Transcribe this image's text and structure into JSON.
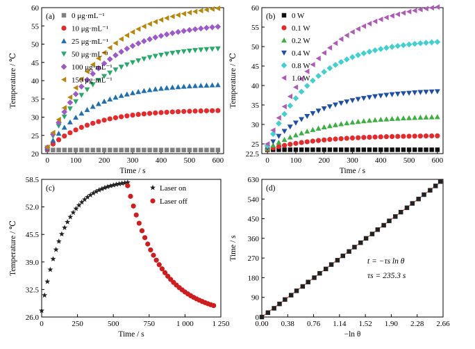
{
  "chart_data": [
    {
      "id": "a",
      "type": "scatter",
      "panel_label": "(a)",
      "xlabel": "Time / s",
      "ylabel": "Temperature / ℃",
      "xlim": [
        -20,
        620
      ],
      "ylim": [
        20,
        60
      ],
      "xticks": [
        "0",
        "100",
        "200",
        "300",
        "400",
        "500",
        "600"
      ],
      "yticks": [
        "20",
        "25",
        "30",
        "35",
        "40",
        "45",
        "50",
        "55",
        "60"
      ],
      "legend_position": "top-left",
      "series": [
        {
          "name": "0 μg·mL⁻¹",
          "marker": "square",
          "color": "#808080",
          "T0": 21.0,
          "Tmax": 21.0,
          "tau": 150
        },
        {
          "name": "10 μg·mL⁻¹",
          "marker": "circle",
          "color": "#e8292b",
          "T0": 21.3,
          "Tmax": 32.0,
          "tau": 150
        },
        {
          "name": "25 μg·mL⁻¹",
          "marker": "triangle-up",
          "color": "#1f6fb5",
          "T0": 21.5,
          "Tmax": 39.2,
          "tau": 155
        },
        {
          "name": "50 μg·mL⁻¹",
          "marker": "triangle-down",
          "color": "#26a96b",
          "T0": 21.6,
          "Tmax": 49.5,
          "tau": 165
        },
        {
          "name": "100 μg·mL⁻¹",
          "marker": "diamond",
          "color": "#9b59c9",
          "T0": 21.7,
          "Tmax": 56.0,
          "tau": 180
        },
        {
          "name": "150 μg·mL⁻¹",
          "marker": "triangle-left",
          "color": "#b8860b",
          "T0": 21.8,
          "Tmax": 61.5,
          "tau": 190
        }
      ]
    },
    {
      "id": "b",
      "type": "scatter",
      "panel_label": "(b)",
      "xlabel": "Time / s",
      "ylabel": "Temperature / ℃",
      "xlim": [
        -20,
        620
      ],
      "ylim": [
        22.5,
        60
      ],
      "xticks": [
        "0",
        "100",
        "200",
        "300",
        "400",
        "500",
        "600"
      ],
      "yticks": [
        "22.5",
        "25",
        "30",
        "35",
        "40",
        "45",
        "50",
        "55",
        "60"
      ],
      "legend_position": "top-left",
      "series": [
        {
          "name": "0 W",
          "marker": "square",
          "color": "#111111",
          "T0": 23.5,
          "Tmax": 23.5,
          "tau": 150
        },
        {
          "name": "0.1 W",
          "marker": "circle",
          "color": "#e8292b",
          "T0": 23.6,
          "Tmax": 27.2,
          "tau": 180
        },
        {
          "name": "0.2 W",
          "marker": "triangle-up",
          "color": "#3cb043",
          "T0": 23.8,
          "Tmax": 32.3,
          "tau": 190
        },
        {
          "name": "0.4 W",
          "marker": "triangle-down",
          "color": "#1f4ea8",
          "T0": 24.0,
          "Tmax": 39.0,
          "tau": 180
        },
        {
          "name": "0.8 W",
          "marker": "diamond",
          "color": "#40d0d0",
          "T0": 24.5,
          "Tmax": 52.0,
          "tau": 170
        },
        {
          "name": "1.0 W",
          "marker": "triangle-left",
          "color": "#b05ab8",
          "T0": 25.0,
          "Tmax": 62.0,
          "tau": 200
        }
      ]
    },
    {
      "id": "c",
      "type": "scatter",
      "panel_label": "(c)",
      "xlabel": "Time / s",
      "ylabel": "Temperature / ℃",
      "xlim": [
        0,
        1250
      ],
      "ylim": [
        26.0,
        58.5
      ],
      "xticks": [
        "0",
        "250",
        "500",
        "750",
        "1 000",
        "1 250"
      ],
      "xtick_values": [
        0,
        250,
        500,
        750,
        1000,
        1250
      ],
      "yticks": [
        "26.0",
        "32.5",
        "39.0",
        "45.5",
        "52.0",
        "58.5"
      ],
      "legend_position": "top-right",
      "series": [
        {
          "name": "Laser on",
          "marker": "star",
          "color": "#222222",
          "phase": "heating",
          "t_start": 0,
          "t_end": 600,
          "dt": 20,
          "T0": 27.5,
          "Tmax": 58.5,
          "tau": 160
        },
        {
          "name": "Laser off",
          "marker": "circle",
          "color": "#d01c1f",
          "phase": "cooling",
          "t_start": 600,
          "t_end": 1200,
          "dt": 20,
          "T_start": 57.0,
          "T_amb": 26.3,
          "tau": 235.3
        }
      ]
    },
    {
      "id": "d",
      "type": "scatter",
      "panel_label": "(d)",
      "xlabel": "−ln θ",
      "ylabel": "Time / s",
      "xlim": [
        0,
        2.66
      ],
      "ylim": [
        0,
        630
      ],
      "xticks": [
        "0.00",
        "0.38",
        "0.76",
        "1.14",
        "1.52",
        "1.90",
        "2.28",
        "2.66"
      ],
      "yticks": [
        "0",
        "90",
        "180",
        "270",
        "360",
        "450",
        "540",
        "630"
      ],
      "fit": {
        "color": "#e0533a",
        "slope": 235.3,
        "intercept": 0
      },
      "point_color": "#222222",
      "marker": "square",
      "x_values": [
        0.0,
        0.09,
        0.18,
        0.26,
        0.34,
        0.43,
        0.51,
        0.6,
        0.68,
        0.77,
        0.85,
        0.94,
        1.02,
        1.11,
        1.19,
        1.28,
        1.36,
        1.45,
        1.53,
        1.62,
        1.7,
        1.79,
        1.87,
        1.96,
        2.04,
        2.13,
        2.21,
        2.3,
        2.38,
        2.47,
        2.55,
        2.62
      ],
      "annotation_equation": "t = −τs ln θ",
      "annotation_tau": "τs = 235.3 s"
    }
  ]
}
